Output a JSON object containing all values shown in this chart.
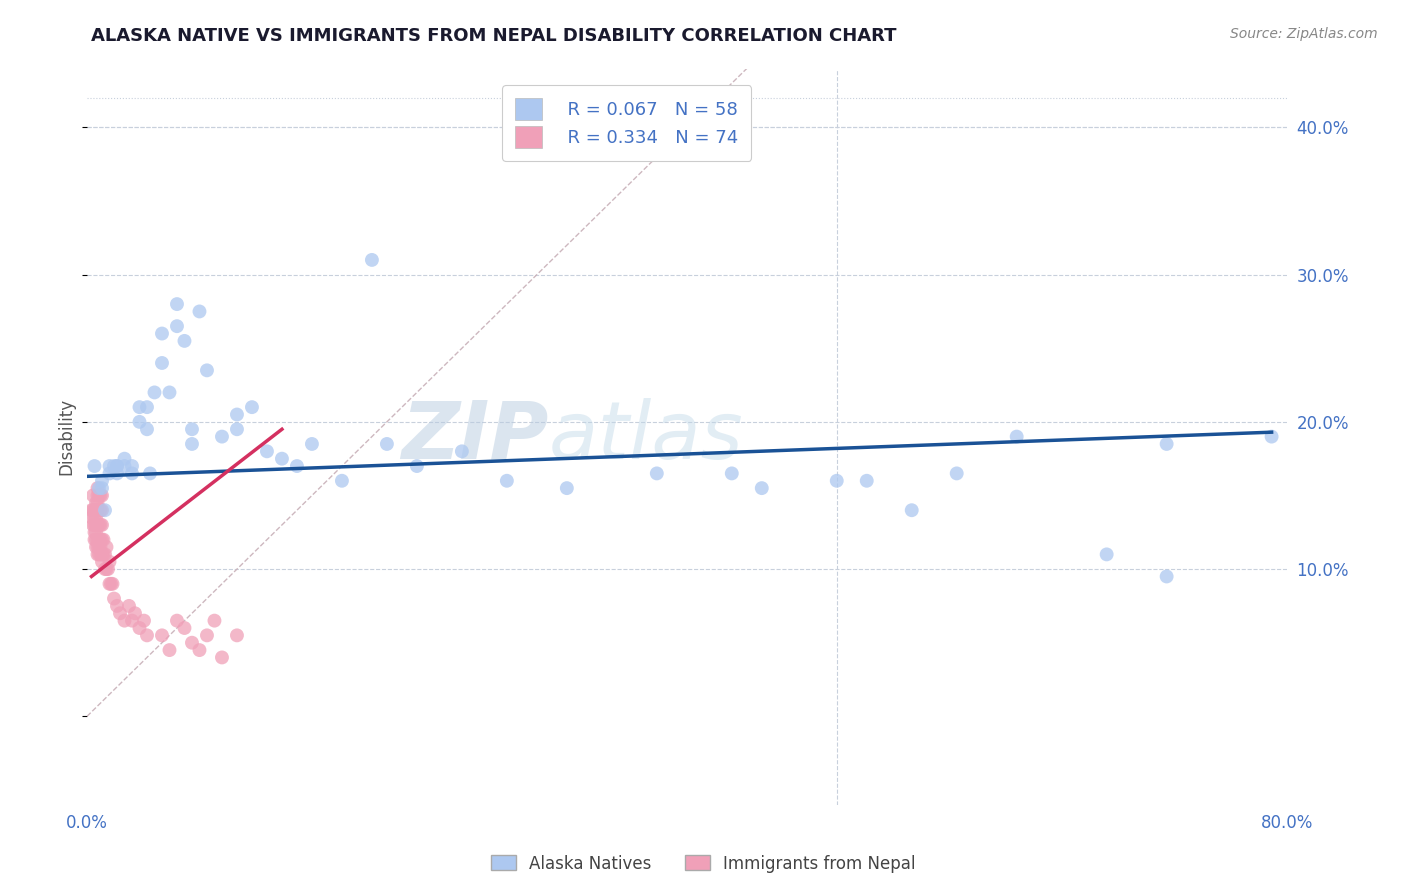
{
  "title": "ALASKA NATIVE VS IMMIGRANTS FROM NEPAL DISABILITY CORRELATION CHART",
  "source_text": "Source: ZipAtlas.com",
  "ylabel": "Disability",
  "watermark_zip": "ZIP",
  "watermark_atlas": "atlas",
  "legend_r_alaska": "R = 0.067",
  "legend_n_alaska": "N = 58",
  "legend_r_nepal": "R = 0.334",
  "legend_n_nepal": "N = 74",
  "alaska_color": "#adc8f0",
  "nepal_color": "#f0a0b8",
  "alaska_line_color": "#1a5296",
  "nepal_line_color": "#d43060",
  "diag_color": "#c8b0b8",
  "axis_color": "#4472c4",
  "xlim": [
    0.0,
    0.8
  ],
  "ylim": [
    -0.06,
    0.44
  ],
  "alaska_x": [
    0.005,
    0.008,
    0.01,
    0.01,
    0.012,
    0.015,
    0.015,
    0.018,
    0.02,
    0.02,
    0.02,
    0.025,
    0.025,
    0.03,
    0.03,
    0.035,
    0.035,
    0.04,
    0.04,
    0.042,
    0.045,
    0.05,
    0.05,
    0.055,
    0.06,
    0.06,
    0.065,
    0.07,
    0.07,
    0.075,
    0.08,
    0.09,
    0.1,
    0.1,
    0.11,
    0.12,
    0.13,
    0.14,
    0.15,
    0.17,
    0.19,
    0.2,
    0.22,
    0.25,
    0.28,
    0.32,
    0.38,
    0.43,
    0.45,
    0.5,
    0.52,
    0.55,
    0.58,
    0.62,
    0.68,
    0.72,
    0.72,
    0.79
  ],
  "alaska_y": [
    0.17,
    0.155,
    0.155,
    0.16,
    0.14,
    0.165,
    0.17,
    0.17,
    0.165,
    0.17,
    0.17,
    0.17,
    0.175,
    0.165,
    0.17,
    0.2,
    0.21,
    0.195,
    0.21,
    0.165,
    0.22,
    0.24,
    0.26,
    0.22,
    0.265,
    0.28,
    0.255,
    0.185,
    0.195,
    0.275,
    0.235,
    0.19,
    0.205,
    0.195,
    0.21,
    0.18,
    0.175,
    0.17,
    0.185,
    0.16,
    0.31,
    0.185,
    0.17,
    0.18,
    0.16,
    0.155,
    0.165,
    0.165,
    0.155,
    0.16,
    0.16,
    0.14,
    0.165,
    0.19,
    0.11,
    0.095,
    0.185,
    0.19
  ],
  "nepal_x": [
    0.003,
    0.003,
    0.004,
    0.004,
    0.004,
    0.005,
    0.005,
    0.005,
    0.005,
    0.005,
    0.006,
    0.006,
    0.006,
    0.006,
    0.006,
    0.006,
    0.006,
    0.007,
    0.007,
    0.007,
    0.007,
    0.007,
    0.007,
    0.007,
    0.007,
    0.008,
    0.008,
    0.008,
    0.008,
    0.008,
    0.008,
    0.009,
    0.009,
    0.009,
    0.009,
    0.009,
    0.009,
    0.01,
    0.01,
    0.01,
    0.01,
    0.01,
    0.01,
    0.011,
    0.011,
    0.012,
    0.012,
    0.013,
    0.013,
    0.014,
    0.015,
    0.015,
    0.016,
    0.017,
    0.018,
    0.02,
    0.022,
    0.025,
    0.028,
    0.03,
    0.032,
    0.035,
    0.038,
    0.04,
    0.05,
    0.055,
    0.06,
    0.065,
    0.07,
    0.075,
    0.08,
    0.085,
    0.09,
    0.1
  ],
  "nepal_y": [
    0.135,
    0.14,
    0.13,
    0.14,
    0.15,
    0.12,
    0.125,
    0.13,
    0.135,
    0.14,
    0.115,
    0.12,
    0.125,
    0.13,
    0.135,
    0.14,
    0.145,
    0.11,
    0.115,
    0.12,
    0.13,
    0.14,
    0.145,
    0.15,
    0.155,
    0.11,
    0.115,
    0.12,
    0.13,
    0.14,
    0.15,
    0.11,
    0.115,
    0.12,
    0.13,
    0.14,
    0.15,
    0.105,
    0.11,
    0.12,
    0.13,
    0.14,
    0.15,
    0.11,
    0.12,
    0.1,
    0.11,
    0.1,
    0.115,
    0.1,
    0.09,
    0.105,
    0.09,
    0.09,
    0.08,
    0.075,
    0.07,
    0.065,
    0.075,
    0.065,
    0.07,
    0.06,
    0.065,
    0.055,
    0.055,
    0.045,
    0.065,
    0.06,
    0.05,
    0.045,
    0.055,
    0.065,
    0.04,
    0.055
  ]
}
